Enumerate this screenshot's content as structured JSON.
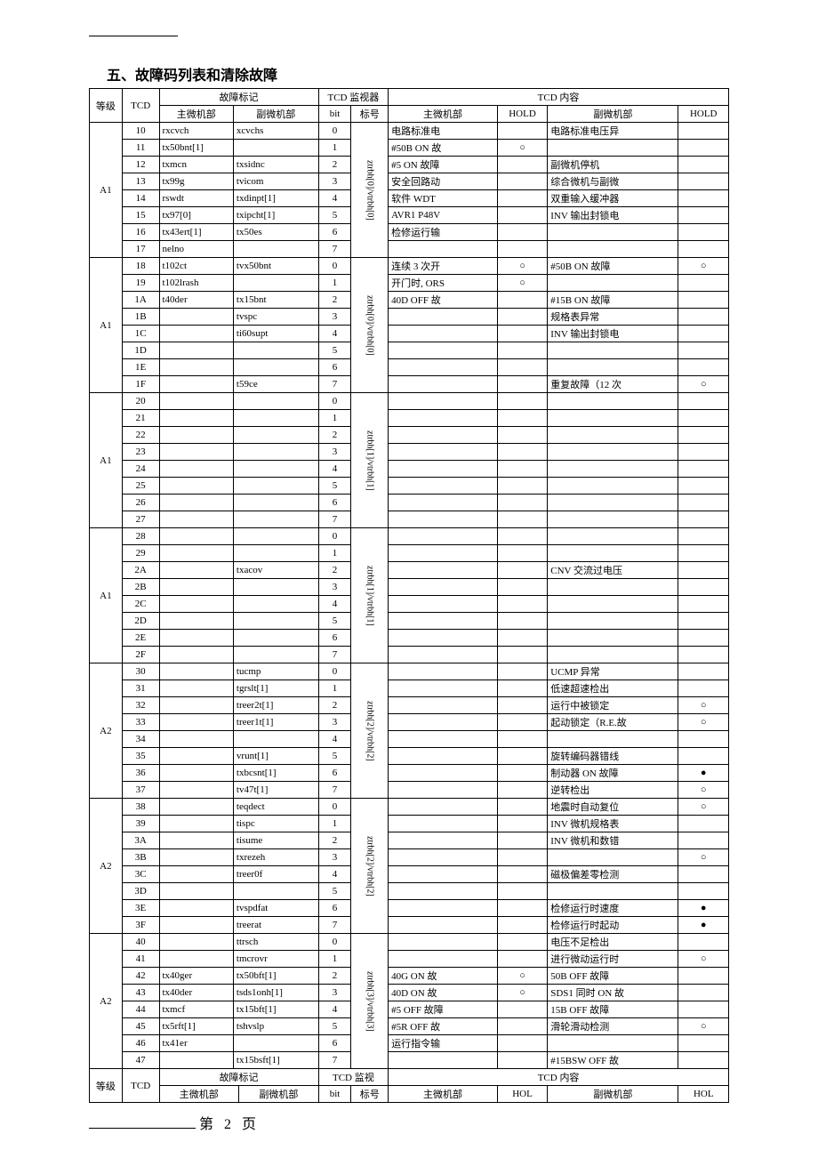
{
  "title": "五、故障码列表和清除故障",
  "headers": {
    "level": "等级",
    "tcd": "TCD",
    "fault_mark": "故障标记",
    "main_mc": "主微机部",
    "sub_mc": "副微机部",
    "tcd_monitor": "TCD 监视器",
    "bit": "bit",
    "mark": "标号",
    "tcd_content": "TCD 内容",
    "hold": "HOLD",
    "tcd_monitor_foot": "TCD 监视",
    "hol": "HOL"
  },
  "groups": [
    {
      "level": "A1",
      "mark": "ztrbh[0]/vtrbh[0]",
      "rows": [
        {
          "tcd": "10",
          "main": "rxcvch",
          "sub": "xcvchs",
          "bit": "0",
          "cmain": "电路标准电",
          "h1": "",
          "csub": "电路标准电压异",
          "h2": ""
        },
        {
          "tcd": "11",
          "main": "tx50bnt[1]",
          "sub": "",
          "bit": "1",
          "cmain": "#50B ON 故",
          "h1": "○",
          "csub": "",
          "h2": ""
        },
        {
          "tcd": "12",
          "main": "txmcn",
          "sub": "txsidnc",
          "bit": "2",
          "cmain": "#5    ON 故障",
          "h1": "",
          "csub": "副微机停机",
          "h2": ""
        },
        {
          "tcd": "13",
          "main": "tx99g",
          "sub": "tvicom",
          "bit": "3",
          "cmain": "安全回路动",
          "h1": "",
          "csub": "综合微机与副微",
          "h2": ""
        },
        {
          "tcd": "14",
          "main": "rswdt",
          "sub": "txdinpt[1]",
          "bit": "4",
          "cmain": "软件 WDT",
          "h1": "",
          "csub": "双重输入缓冲器",
          "h2": ""
        },
        {
          "tcd": "15",
          "main": "tx97[0]",
          "sub": "txipcht[1]",
          "bit": "5",
          "cmain": "AVR1 P48V",
          "h1": "",
          "csub": "INV 输出封锁电",
          "h2": ""
        },
        {
          "tcd": "16",
          "main": "tx43ert[1]",
          "sub": "tx50es",
          "bit": "6",
          "cmain": "检修运行输",
          "h1": "",
          "csub": "",
          "h2": ""
        },
        {
          "tcd": "17",
          "main": "nelno",
          "sub": "",
          "bit": "7",
          "cmain": "",
          "h1": "",
          "csub": "",
          "h2": ""
        }
      ]
    },
    {
      "level": "A1",
      "mark": "ztrbh[0]/vtrbh[0]",
      "rows": [
        {
          "tcd": "18",
          "main": "t102ct",
          "sub": "tvx50bnt",
          "bit": "0",
          "cmain": "连续 3 次开",
          "h1": "○",
          "csub": "#50B    ON 故障",
          "h2": "○"
        },
        {
          "tcd": "19",
          "main": "t102lrash",
          "sub": "",
          "bit": "1",
          "cmain": "开门时, ORS",
          "h1": "○",
          "csub": "",
          "h2": ""
        },
        {
          "tcd": "1A",
          "main": "t40der",
          "sub": "tx15bnt",
          "bit": "2",
          "cmain": "40D OFF 故",
          "h1": "",
          "csub": "#15B    ON 故障",
          "h2": ""
        },
        {
          "tcd": "1B",
          "main": "",
          "sub": "tvspc",
          "bit": "3",
          "cmain": "",
          "h1": "",
          "csub": "规格表异常",
          "h2": ""
        },
        {
          "tcd": "1C",
          "main": "",
          "sub": "ti60supt",
          "bit": "4",
          "cmain": "",
          "h1": "",
          "csub": "INV 输出封锁电",
          "h2": ""
        },
        {
          "tcd": "1D",
          "main": "",
          "sub": "",
          "bit": "5",
          "cmain": "",
          "h1": "",
          "csub": "",
          "h2": ""
        },
        {
          "tcd": "1E",
          "main": "",
          "sub": "",
          "bit": "6",
          "cmain": "",
          "h1": "",
          "csub": "",
          "h2": ""
        },
        {
          "tcd": "1F",
          "main": "",
          "sub": "t59ce",
          "bit": "7",
          "cmain": "",
          "h1": "",
          "csub": "重复故障（12 次",
          "h2": "○"
        }
      ]
    },
    {
      "level": "A1",
      "mark": "ztrbh[1]/vtrbh[1]",
      "rows": [
        {
          "tcd": "20",
          "main": "",
          "sub": "",
          "bit": "0",
          "cmain": "",
          "h1": "",
          "csub": "",
          "h2": ""
        },
        {
          "tcd": "21",
          "main": "",
          "sub": "",
          "bit": "1",
          "cmain": "",
          "h1": "",
          "csub": "",
          "h2": ""
        },
        {
          "tcd": "22",
          "main": "",
          "sub": "",
          "bit": "2",
          "cmain": "",
          "h1": "",
          "csub": "",
          "h2": ""
        },
        {
          "tcd": "23",
          "main": "",
          "sub": "",
          "bit": "3",
          "cmain": "",
          "h1": "",
          "csub": "",
          "h2": ""
        },
        {
          "tcd": "24",
          "main": "",
          "sub": "",
          "bit": "4",
          "cmain": "",
          "h1": "",
          "csub": "",
          "h2": ""
        },
        {
          "tcd": "25",
          "main": "",
          "sub": "",
          "bit": "5",
          "cmain": "",
          "h1": "",
          "csub": "",
          "h2": ""
        },
        {
          "tcd": "26",
          "main": "",
          "sub": "",
          "bit": "6",
          "cmain": "",
          "h1": "",
          "csub": "",
          "h2": ""
        },
        {
          "tcd": "27",
          "main": "",
          "sub": "",
          "bit": "7",
          "cmain": "",
          "h1": "",
          "csub": "",
          "h2": ""
        }
      ]
    },
    {
      "level": "A1",
      "mark": "ztrbh[1]/vtrbh[1]",
      "rows": [
        {
          "tcd": "28",
          "main": "",
          "sub": "",
          "bit": "0",
          "cmain": "",
          "h1": "",
          "csub": "",
          "h2": ""
        },
        {
          "tcd": "29",
          "main": "",
          "sub": "",
          "bit": "1",
          "cmain": "",
          "h1": "",
          "csub": "",
          "h2": ""
        },
        {
          "tcd": "2A",
          "main": "",
          "sub": "txacov",
          "bit": "2",
          "cmain": "",
          "h1": "",
          "csub": "CNV 交流过电压",
          "h2": ""
        },
        {
          "tcd": "2B",
          "main": "",
          "sub": "",
          "bit": "3",
          "cmain": "",
          "h1": "",
          "csub": "",
          "h2": ""
        },
        {
          "tcd": "2C",
          "main": "",
          "sub": "",
          "bit": "4",
          "cmain": "",
          "h1": "",
          "csub": "",
          "h2": ""
        },
        {
          "tcd": "2D",
          "main": "",
          "sub": "",
          "bit": "5",
          "cmain": "",
          "h1": "",
          "csub": "",
          "h2": ""
        },
        {
          "tcd": "2E",
          "main": "",
          "sub": "",
          "bit": "6",
          "cmain": "",
          "h1": "",
          "csub": "",
          "h2": ""
        },
        {
          "tcd": "2F",
          "main": "",
          "sub": "",
          "bit": "7",
          "cmain": "",
          "h1": "",
          "csub": "",
          "h2": ""
        }
      ]
    },
    {
      "level": "A2",
      "mark": "ztrbh[2]/vtrbh[2]",
      "rows": [
        {
          "tcd": "30",
          "main": "",
          "sub": "tucmp",
          "bit": "0",
          "cmain": "",
          "h1": "",
          "csub": "UCMP 异常",
          "h2": ""
        },
        {
          "tcd": "31",
          "main": "",
          "sub": "tgrslt[1]",
          "bit": "1",
          "cmain": "",
          "h1": "",
          "csub": "低速超速检出",
          "h2": ""
        },
        {
          "tcd": "32",
          "main": "",
          "sub": "treer2t[1]",
          "bit": "2",
          "cmain": "",
          "h1": "",
          "csub": "运行中被锁定",
          "h2": "○"
        },
        {
          "tcd": "33",
          "main": "",
          "sub": "treer1t[1]",
          "bit": "3",
          "cmain": "",
          "h1": "",
          "csub": "起动锁定（R.E.故",
          "h2": "○"
        },
        {
          "tcd": "34",
          "main": "",
          "sub": "",
          "bit": "4",
          "cmain": "",
          "h1": "",
          "csub": "",
          "h2": ""
        },
        {
          "tcd": "35",
          "main": "",
          "sub": "vrunt[1]",
          "bit": "5",
          "cmain": "",
          "h1": "",
          "csub": "旋转编码器错线",
          "h2": ""
        },
        {
          "tcd": "36",
          "main": "",
          "sub": "txbcsnt[1]",
          "bit": "6",
          "cmain": "",
          "h1": "",
          "csub": "制动器 ON 故障",
          "h2": "●"
        },
        {
          "tcd": "37",
          "main": "",
          "sub": "tv47t[1]",
          "bit": "7",
          "cmain": "",
          "h1": "",
          "csub": "逆转检出",
          "h2": "○"
        }
      ]
    },
    {
      "level": "A2",
      "mark": "ztrbh[2]/vtrbh[2]",
      "rows": [
        {
          "tcd": "38",
          "main": "",
          "sub": "teqdect",
          "bit": "0",
          "cmain": "",
          "h1": "",
          "csub": "地震时自动复位",
          "h2": "○"
        },
        {
          "tcd": "39",
          "main": "",
          "sub": "tispc",
          "bit": "1",
          "cmain": "",
          "h1": "",
          "csub": "INV 微机规格表",
          "h2": ""
        },
        {
          "tcd": "3A",
          "main": "",
          "sub": "tisume",
          "bit": "2",
          "cmain": "",
          "h1": "",
          "csub": "INV 微机和数错",
          "h2": ""
        },
        {
          "tcd": "3B",
          "main": "",
          "sub": "txrezeh",
          "bit": "3",
          "cmain": "",
          "h1": "",
          "csub": "",
          "h2": "○"
        },
        {
          "tcd": "3C",
          "main": "",
          "sub": "treer0f",
          "bit": "4",
          "cmain": "",
          "h1": "",
          "csub": "磁极偏差零检测",
          "h2": ""
        },
        {
          "tcd": "3D",
          "main": "",
          "sub": "",
          "bit": "5",
          "cmain": "",
          "h1": "",
          "csub": "",
          "h2": ""
        },
        {
          "tcd": "3E",
          "main": "",
          "sub": "tvspdfat",
          "bit": "6",
          "cmain": "",
          "h1": "",
          "csub": "检修运行时速度",
          "h2": "●"
        },
        {
          "tcd": "3F",
          "main": "",
          "sub": "treerat",
          "bit": "7",
          "cmain": "",
          "h1": "",
          "csub": "检修运行时起动",
          "h2": "●"
        }
      ]
    },
    {
      "level": "A2",
      "mark": "ztrbh[3]/vtrbh[3]",
      "rows": [
        {
          "tcd": "40",
          "main": "",
          "sub": "ttrsch",
          "bit": "0",
          "cmain": "",
          "h1": "",
          "csub": "电压不足检出",
          "h2": ""
        },
        {
          "tcd": "41",
          "main": "",
          "sub": "tmcrovr",
          "bit": "1",
          "cmain": "",
          "h1": "",
          "csub": "进行微动运行时",
          "h2": "○"
        },
        {
          "tcd": "42",
          "main": "tx40ger",
          "sub": "tx50bft[1]",
          "bit": "2",
          "cmain": "40G ON 故",
          "h1": "○",
          "csub": "50B    OFF 故障",
          "h2": ""
        },
        {
          "tcd": "43",
          "main": "tx40der",
          "sub": "tsds1onh[1]",
          "bit": "3",
          "cmain": "40D ON 故",
          "h1": "○",
          "csub": "SDS1 同时 ON 故",
          "h2": ""
        },
        {
          "tcd": "44",
          "main": "txmcf",
          "sub": "tx15bft[1]",
          "bit": "4",
          "cmain": "#5    OFF 故障",
          "h1": "",
          "csub": "15B    OFF 故障",
          "h2": ""
        },
        {
          "tcd": "45",
          "main": "tx5rft[1]",
          "sub": "tshvslp",
          "bit": "5",
          "cmain": "#5R OFF 故",
          "h1": "",
          "csub": "滑轮滑动检测",
          "h2": "○"
        },
        {
          "tcd": "46",
          "main": "tx41er",
          "sub": "",
          "bit": "6",
          "cmain": "运行指令输",
          "h1": "",
          "csub": "",
          "h2": ""
        },
        {
          "tcd": "47",
          "main": "",
          "sub": "tx15bsft[1]",
          "bit": "7",
          "cmain": "",
          "h1": "",
          "csub": "#15BSW OFF 故",
          "h2": ""
        }
      ]
    }
  ],
  "footer_page": "第 2 页"
}
